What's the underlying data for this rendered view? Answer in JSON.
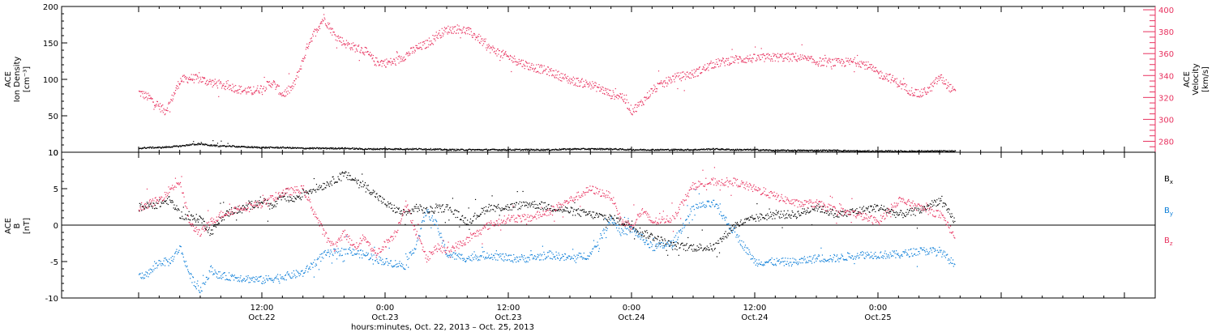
{
  "colors": {
    "density": "#000000",
    "velocity": "#e8325f",
    "bx": "#000000",
    "by": "#0a7dd8",
    "bz": "#e8325f",
    "frame": "#000000"
  },
  "chart_data": [
    {
      "type": "scatter",
      "panel": "plasma",
      "ylabel_lines": [
        "ACE",
        "Ion Density",
        "[cm⁻³]"
      ],
      "y2label_lines": [
        "ACE",
        "Velocity",
        "[km/s]"
      ],
      "ylim": [
        0,
        200
      ],
      "y2lim": [
        270,
        403
      ],
      "y_ticks": [
        0,
        50,
        100,
        150,
        200
      ],
      "y2_ticks": [
        280,
        300,
        320,
        340,
        360,
        380,
        400
      ],
      "x_hours_since_start": true,
      "series": [
        {
          "axis": "left",
          "color_key": "density",
          "x": [
            0,
            1,
            2,
            3,
            4,
            5,
            6,
            7,
            8,
            9,
            10,
            12,
            14,
            16,
            18,
            20,
            22,
            24,
            26,
            28,
            30,
            32,
            34,
            36,
            38,
            40,
            42,
            44,
            46,
            48,
            50,
            52,
            54,
            56,
            58,
            60,
            62,
            64,
            66,
            68,
            70,
            72,
            74,
            76,
            78,
            79.5
          ],
          "values": [
            6,
            7,
            7,
            8,
            9,
            11,
            12,
            10,
            9,
            9,
            8,
            7,
            7,
            6,
            6,
            6,
            5,
            5,
            5,
            5,
            4,
            4,
            4,
            4,
            4,
            4,
            5,
            5,
            5,
            4,
            4,
            4,
            4,
            5,
            4,
            4,
            3,
            3,
            3,
            3,
            2,
            2,
            2,
            2,
            2,
            2
          ]
        },
        {
          "axis": "right",
          "color_key": "velocity",
          "x": [
            0,
            1,
            2,
            2.5,
            3,
            4,
            5,
            6,
            7,
            8,
            9,
            10,
            11,
            12,
            13,
            14,
            15,
            16,
            16.5,
            17,
            18,
            19,
            20,
            21,
            22,
            23,
            24,
            25,
            26,
            27,
            28,
            29,
            30,
            31,
            32,
            33,
            34,
            36,
            38,
            40,
            42,
            44,
            45,
            46,
            47,
            48,
            49,
            50,
            52,
            54,
            56,
            58,
            60,
            62,
            64,
            66,
            68,
            70,
            71,
            72,
            73,
            74,
            75,
            76,
            77,
            78,
            79.5
          ],
          "values": [
            325,
            320,
            312,
            308,
            315,
            336,
            338,
            337,
            334,
            332,
            330,
            327,
            326,
            329,
            334,
            323,
            330,
            355,
            370,
            378,
            393,
            378,
            370,
            366,
            363,
            353,
            352,
            353,
            359,
            365,
            369,
            377,
            382,
            383,
            381,
            375,
            366,
            357,
            349,
            344,
            336,
            332,
            328,
            323,
            322,
            308,
            316,
            327,
            338,
            342,
            351,
            355,
            356,
            357,
            357,
            353,
            352,
            353,
            349,
            342,
            339,
            333,
            327,
            323,
            328,
            339,
            324
          ]
        }
      ]
    },
    {
      "type": "scatter",
      "panel": "magnetic-field",
      "ylabel_lines": [
        "ACE",
        "B",
        "[nT]"
      ],
      "ylim": [
        -10,
        10
      ],
      "y_ticks": [
        -10,
        -5,
        0,
        5,
        10
      ],
      "zero_line": true,
      "x_hours_since_start": true,
      "series": [
        {
          "name": "B",
          "subscript": "x",
          "color_key": "bx",
          "x": [
            0,
            2,
            3,
            4,
            5,
            6,
            7,
            8,
            9,
            10,
            12,
            13,
            14,
            15,
            16,
            18,
            20,
            22,
            24,
            25,
            26,
            27,
            28,
            30,
            32,
            34,
            36,
            38,
            40,
            42,
            44,
            46,
            47,
            48,
            49,
            50,
            52,
            54,
            56,
            58,
            60,
            62,
            64,
            66,
            68,
            70,
            72,
            74,
            76,
            78,
            79.5
          ],
          "values": [
            2.5,
            3,
            3.5,
            1.5,
            1,
            1,
            -1,
            1,
            2,
            2.2,
            3.5,
            2.5,
            4,
            3.5,
            4.5,
            5.5,
            7,
            5.5,
            3,
            2.2,
            1.5,
            2.5,
            2,
            2.5,
            0.5,
            2.5,
            2.5,
            3,
            2.5,
            2,
            1.5,
            1,
            0.5,
            0,
            -1,
            -1.5,
            -2.8,
            -3,
            -3,
            0,
            1,
            1.5,
            1.5,
            2.5,
            1.5,
            2,
            2.5,
            1.5,
            2,
            3.5,
            0.5
          ]
        },
        {
          "name": "B",
          "subscript": "y",
          "color_key": "by",
          "x": [
            0,
            1,
            2,
            3,
            4,
            5,
            6,
            7,
            8,
            9,
            10,
            12,
            14,
            16,
            18,
            20,
            22,
            24,
            26,
            27,
            28,
            29,
            30,
            32,
            34,
            36,
            38,
            40,
            42,
            44,
            45,
            46,
            47,
            48,
            50,
            52,
            54,
            56,
            58,
            60,
            62,
            64,
            66,
            68,
            70,
            72,
            74,
            76,
            78,
            79.5
          ],
          "values": [
            -7,
            -6.5,
            -5,
            -5,
            -3,
            -7,
            -9,
            -6,
            -7,
            -7,
            -7.2,
            -7.5,
            -7,
            -6.5,
            -4,
            -3.5,
            -4,
            -5,
            -5.5,
            -2.5,
            2,
            0,
            -4,
            -4.5,
            -4,
            -4.5,
            -4.5,
            -4,
            -4.5,
            -4,
            -1.5,
            1,
            -1,
            -0.5,
            -3,
            -2.5,
            2.5,
            3,
            -1,
            -5,
            -5,
            -5,
            -4.5,
            -4.5,
            -4,
            -4,
            -4,
            -3.5,
            -3.5,
            -5.5
          ]
        },
        {
          "name": "B",
          "subscript": "z",
          "color_key": "bz",
          "x": [
            0,
            2,
            3,
            4,
            5,
            6,
            7,
            8,
            9,
            10,
            12,
            14,
            16,
            18,
            19,
            20,
            21,
            22,
            23,
            24,
            25,
            26,
            27,
            28,
            29,
            30,
            32,
            34,
            36,
            38,
            40,
            42,
            44,
            46,
            47,
            48,
            49,
            50,
            52,
            54,
            56,
            58,
            60,
            62,
            64,
            66,
            68,
            70,
            72,
            74,
            76,
            78,
            79.5
          ],
          "values": [
            2.5,
            3.5,
            5,
            6,
            0,
            -1,
            0.5,
            1.5,
            2,
            2.5,
            3,
            4.5,
            5,
            -1,
            -3,
            -1,
            -3,
            -1.5,
            -4,
            -2.5,
            -1,
            3,
            -1,
            -4.5,
            -3,
            -3.5,
            -2,
            0,
            1,
            1,
            2,
            3.5,
            5,
            4,
            0.5,
            0,
            2,
            0.5,
            1,
            5.5,
            6,
            6,
            5,
            4,
            3,
            3,
            2,
            1.5,
            0.5,
            3.5,
            2.5,
            1.5,
            -1.5
          ]
        }
      ]
    }
  ],
  "x_axis": {
    "range_hours": [
      -7.5,
      99
    ],
    "ticks": [
      {
        "hour": 12,
        "time": "12:00",
        "date": "Oct.22"
      },
      {
        "hour": 24,
        "time": "0:00",
        "date": "Oct.23"
      },
      {
        "hour": 36,
        "time": "12:00",
        "date": "Oct.23"
      },
      {
        "hour": 48,
        "time": "0:00",
        "date": "Oct.24"
      },
      {
        "hour": 60,
        "time": "12:00",
        "date": "Oct.24"
      },
      {
        "hour": 72,
        "time": "0:00",
        "date": "Oct.25"
      }
    ],
    "label": "hours:minutes, Oct. 22, 2013 – Oct. 25, 2013"
  }
}
